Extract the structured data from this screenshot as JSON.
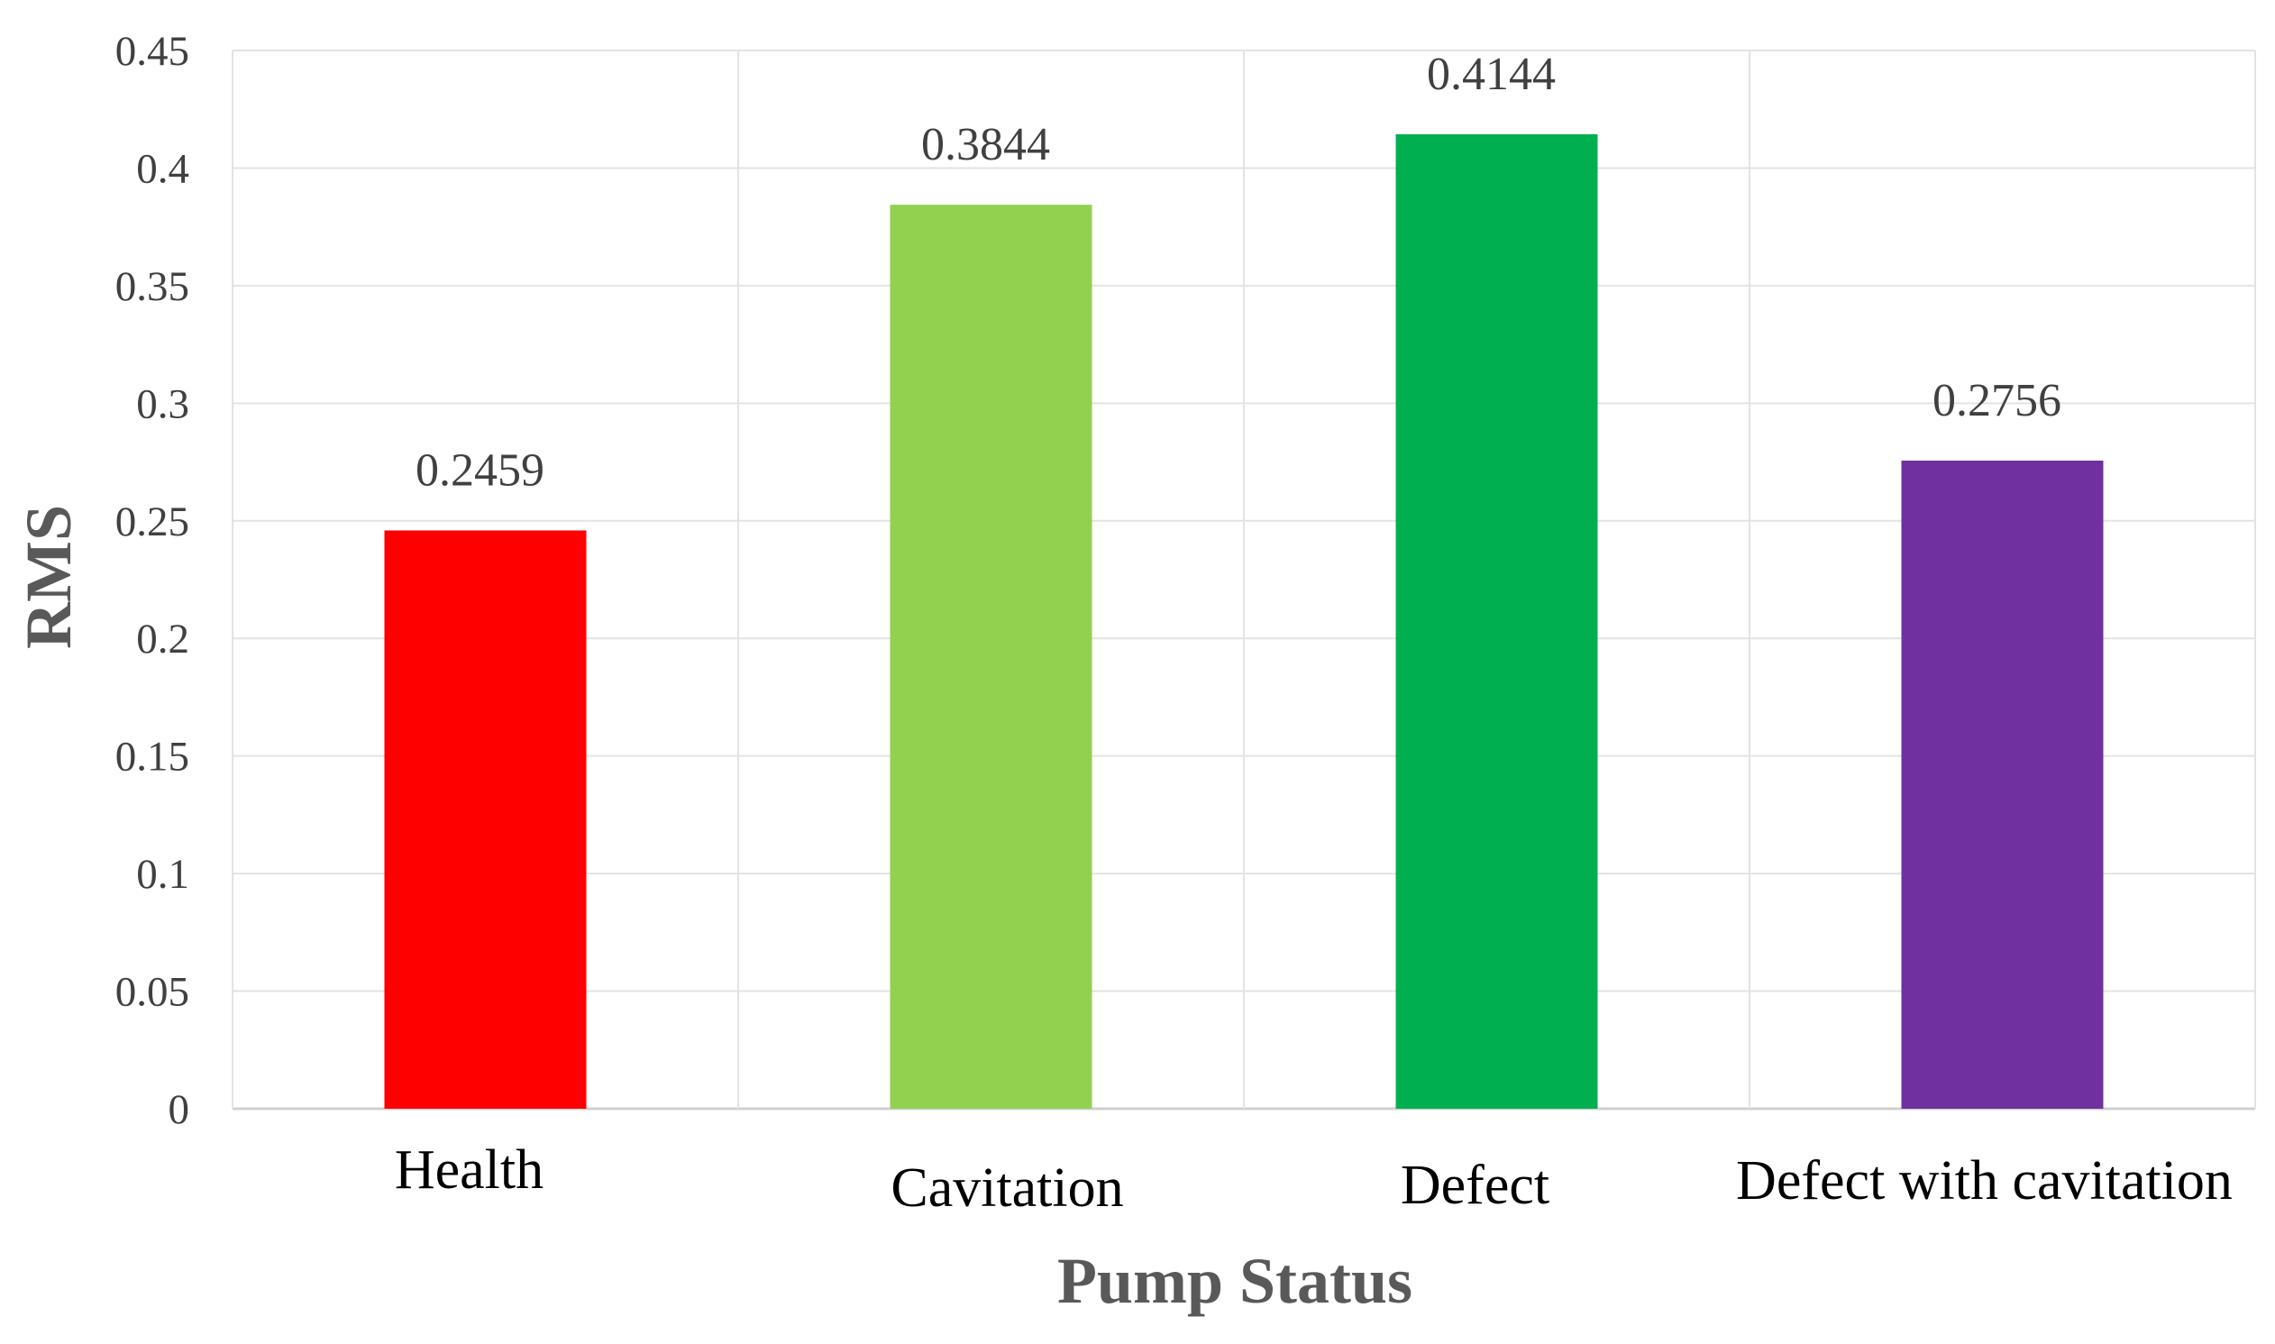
{
  "chart_data": {
    "type": "bar",
    "title": "",
    "xlabel": "Pump Status",
    "ylabel": "RMS",
    "categories": [
      "Health",
      "Cavitation",
      "Defect",
      "Defect with cavitation"
    ],
    "values": [
      0.2459,
      0.3844,
      0.4144,
      0.2756
    ],
    "value_labels": [
      "0.2459",
      "0.3844",
      "0.4144",
      "0.2756"
    ],
    "colors": [
      "#ff0000",
      "#92d050",
      "#00b050",
      "#7030a0"
    ],
    "ylim": [
      0,
      0.45
    ],
    "yticks": [
      "0",
      "0.05",
      "0.1",
      "0.15",
      "0.2",
      "0.25",
      "0.3",
      "0.35",
      "0.4",
      "0.45"
    ],
    "grid": true,
    "legend": "none"
  }
}
